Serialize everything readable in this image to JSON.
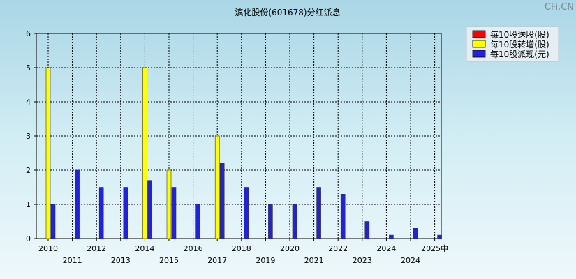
{
  "watermark": "CFi.CN",
  "chart_data": {
    "type": "bar",
    "title": "滨化股份(601678)分红派息",
    "categories": [
      "2010",
      "2011",
      "2012",
      "2013",
      "2014",
      "2015",
      "2016",
      "2017",
      "2018",
      "2019",
      "2020",
      "2021",
      "2022",
      "2023",
      "2024",
      "2024",
      "2025中"
    ],
    "series": [
      {
        "name": "每10股送股(股)",
        "color": "#ff0000",
        "values": [
          0,
          0,
          0,
          0,
          0,
          0,
          0,
          0,
          0,
          0,
          0,
          0,
          0,
          0,
          0,
          0,
          0
        ]
      },
      {
        "name": "每10股转增(股)",
        "color": "#ffff00",
        "values": [
          5,
          0,
          0,
          0,
          5,
          2,
          0,
          3,
          0,
          0,
          0,
          0,
          0,
          0,
          0,
          0,
          0
        ]
      },
      {
        "name": "每10股派现(元)",
        "color": "#2222dd",
        "values": [
          1,
          2,
          1.5,
          1.5,
          1.7,
          1.5,
          1,
          2.2,
          1.5,
          1,
          1,
          1.5,
          1.3,
          0.5,
          0.1,
          0.3,
          0.1
        ]
      }
    ],
    "ylim": [
      0,
      6
    ],
    "yticks": [
      "0",
      "1",
      "2",
      "3",
      "4",
      "5",
      "6"
    ],
    "grid": true,
    "legend_position": "top-right",
    "xlabel": "",
    "ylabel": ""
  }
}
